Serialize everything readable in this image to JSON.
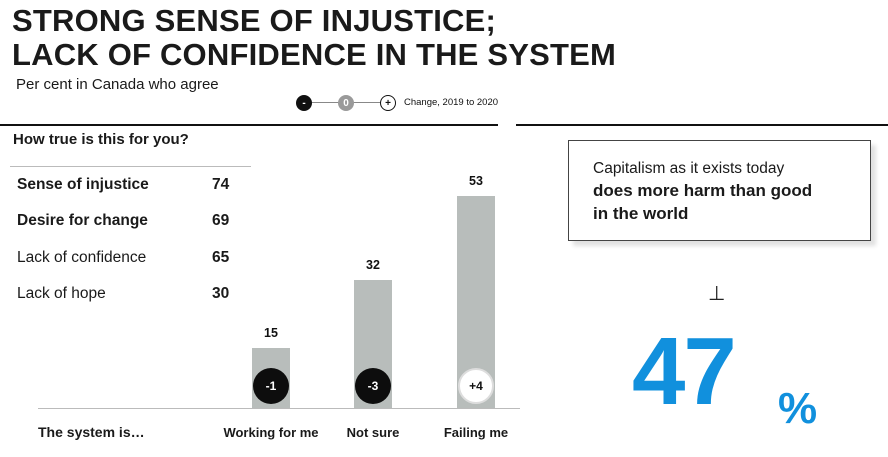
{
  "title_line1": "STRONG SENSE OF INJUSTICE;",
  "title_line2": "LACK OF CONFIDENCE IN THE SYSTEM",
  "subtitle": "Per cent in Canada who agree",
  "legend": {
    "minus": "-",
    "zero": "0",
    "plus": "+",
    "label": "Change, 2019 to 2020"
  },
  "sentiment": {
    "title": "How true is this for you?",
    "rows": [
      {
        "label": "Sense of injustice",
        "value": "74"
      },
      {
        "label": "Desire for change",
        "value": "69"
      },
      {
        "label": "Lack of confidence",
        "value": "65"
      },
      {
        "label": "Lack of hope",
        "value": "30"
      }
    ]
  },
  "system_label": "The system is…",
  "capitalism": {
    "line1": "Capitalism as it exists today",
    "line2": "does more harm than good in the world",
    "symbol": "⊥",
    "value": "47",
    "unit": "%"
  },
  "colors": {
    "bar": "#b8bdbb",
    "accent": "#1190dd",
    "negative_badge": "#0d0d0d"
  },
  "chart_data": {
    "type": "bar",
    "categories": [
      "Working for me",
      "Not sure",
      "Failing me"
    ],
    "values": [
      15,
      32,
      53
    ],
    "changes": [
      "-1",
      "-3",
      "+4"
    ],
    "ylim": [
      0,
      60
    ]
  }
}
